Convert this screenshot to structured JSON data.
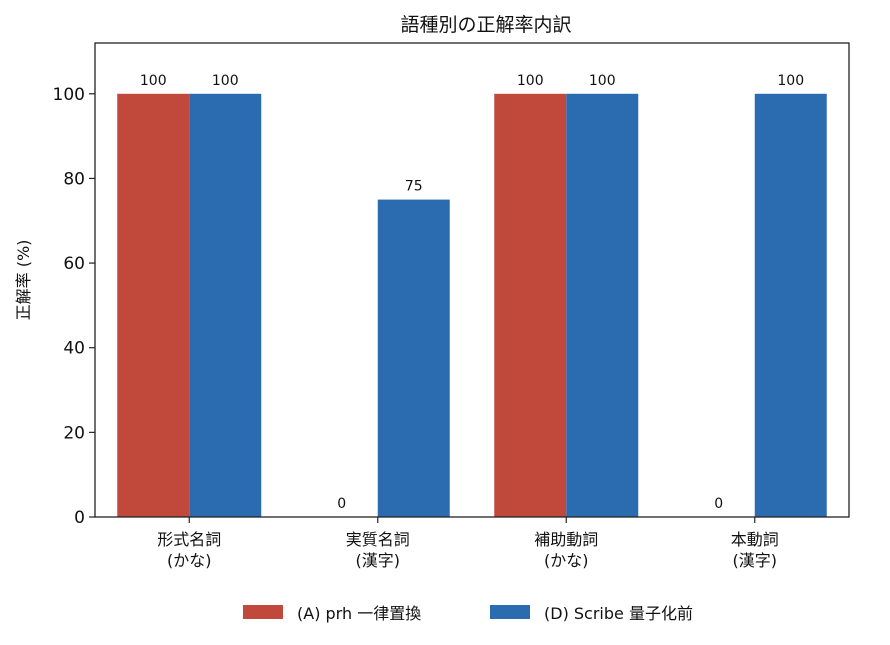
{
  "chart_data": {
    "type": "bar",
    "title": "語種別の正解率内訳",
    "ylabel": "正解率 (%)",
    "xlabel": "",
    "ylim": [
      0,
      112
    ],
    "yticks": [
      0,
      20,
      40,
      60,
      80,
      100
    ],
    "categories": [
      [
        "形式名詞",
        "(かな)"
      ],
      [
        "実質名詞",
        "(漢字)"
      ],
      [
        "補助動詞",
        "(かな)"
      ],
      [
        "本動詞",
        "(漢字)"
      ]
    ],
    "series": [
      {
        "name": "(A) prh 一律置換",
        "color": "#c0493b",
        "values": [
          100,
          0,
          100,
          0
        ]
      },
      {
        "name": "(D) Scribe 量子化前",
        "color": "#2b6cb0",
        "values": [
          100,
          75,
          100,
          100
        ]
      }
    ],
    "legend_position": "bottom-center",
    "grid": false
  }
}
